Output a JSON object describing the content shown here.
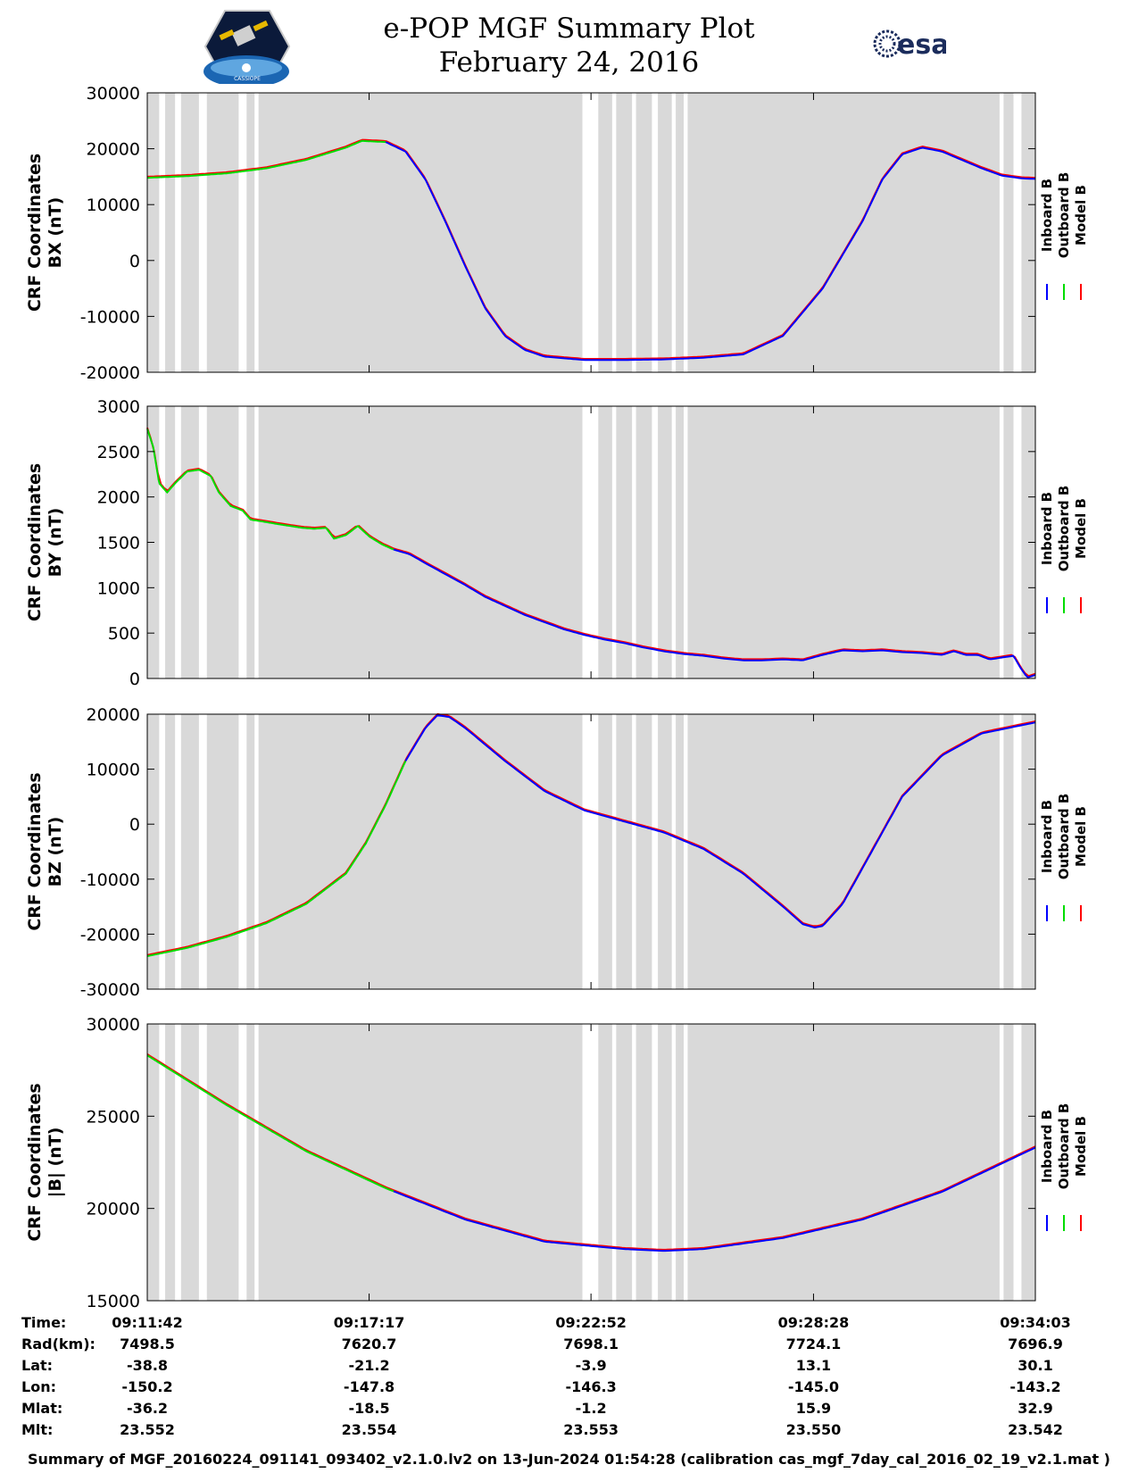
{
  "header": {
    "title": "e-POP MGF Summary Plot",
    "date": "February 24, 2016",
    "logo_left_text": "CASSIOPE",
    "logo_right_text": "esa"
  },
  "colors": {
    "inboard": "#0000ff",
    "outboard": "#00dd00",
    "model": "#ff0000",
    "gap_fill": "#d9d9d9"
  },
  "chart_data": [
    {
      "type": "line",
      "id": "bx",
      "ylabel_line1": "CRF Coordinates",
      "ylabel_line2": "BX (nT)",
      "ylim": [
        -20000,
        30000
      ],
      "yticks": [
        30000,
        20000,
        10000,
        0,
        -10000,
        -20000
      ],
      "legend": [
        "Inboard B",
        "Outboard B",
        "Model B"
      ],
      "x_minutes": [
        0,
        1,
        2,
        3,
        4,
        5,
        5.4,
        6,
        6.5,
        7,
        7.5,
        8,
        8.5,
        9,
        9.5,
        10,
        11,
        12,
        13,
        14,
        15,
        16,
        17,
        18,
        18.5,
        19,
        19.5,
        20,
        20.5,
        21,
        21.5,
        22,
        22.35
      ],
      "series": [
        {
          "name": "Outboard B",
          "start_min": 0,
          "end_min": 6.0
        },
        {
          "name": "Model B",
          "start_min": 0,
          "end_min": 22.35
        },
        {
          "name": "Inboard B",
          "start_min": 6.0,
          "end_min": 22.35
        }
      ],
      "values": [
        14800,
        15100,
        15600,
        16500,
        18000,
        20200,
        21400,
        21200,
        19500,
        14500,
        7000,
        -1000,
        -8500,
        -13500,
        -16000,
        -17200,
        -17800,
        -17800,
        -17700,
        -17400,
        -16800,
        -13500,
        -5000,
        7000,
        14500,
        19000,
        20200,
        19500,
        18000,
        16500,
        15200,
        14700,
        14600
      ]
    },
    {
      "type": "line",
      "id": "by",
      "ylabel_line1": "CRF Coordinates",
      "ylabel_line2": "BY (nT)",
      "ylim": [
        0,
        3000
      ],
      "yticks": [
        3000,
        2500,
        2000,
        1500,
        1000,
        500,
        0
      ],
      "legend": [
        "Inboard B",
        "Outboard B",
        "Model B"
      ],
      "x_minutes": [
        0,
        0.15,
        0.3,
        0.5,
        0.7,
        1,
        1.3,
        1.6,
        1.8,
        2.1,
        2.4,
        2.6,
        2.9,
        3.3,
        3.6,
        3.9,
        4.2,
        4.5,
        4.7,
        5.0,
        5.3,
        5.6,
        5.9,
        6.2,
        6.6,
        7,
        7.5,
        8,
        8.5,
        9,
        9.5,
        10,
        10.5,
        11,
        11.5,
        12,
        12.5,
        13,
        13.5,
        14,
        14.5,
        15,
        15.5,
        16,
        16.5,
        17,
        17.5,
        18,
        18.5,
        19,
        19.5,
        20,
        20.3,
        20.6,
        20.9,
        21.2,
        21.5,
        21.8,
        22.0,
        22.15,
        22.35
      ],
      "series": [
        {
          "name": "Outboard B",
          "start_min": 0,
          "end_min": 6.2
        },
        {
          "name": "Model B",
          "start_min": 0,
          "end_min": 22.35
        },
        {
          "name": "Inboard B",
          "start_min": 6.2,
          "end_min": 22.35
        }
      ],
      "values": [
        2750,
        2550,
        2150,
        2050,
        2150,
        2280,
        2300,
        2230,
        2050,
        1900,
        1850,
        1750,
        1730,
        1700,
        1680,
        1660,
        1650,
        1660,
        1540,
        1580,
        1680,
        1560,
        1480,
        1420,
        1370,
        1270,
        1150,
        1030,
        900,
        800,
        700,
        620,
        540,
        480,
        430,
        390,
        340,
        300,
        270,
        250,
        220,
        200,
        200,
        210,
        200,
        260,
        310,
        300,
        310,
        290,
        280,
        260,
        300,
        260,
        260,
        210,
        230,
        250,
        100,
        10,
        40
      ]
    },
    {
      "type": "line",
      "id": "bz",
      "ylabel_line1": "CRF Coordinates",
      "ylabel_line2": "BZ (nT)",
      "ylim": [
        -30000,
        20000
      ],
      "yticks": [
        20000,
        10000,
        0,
        -10000,
        -20000,
        -30000
      ],
      "legend": [
        "Inboard B",
        "Outboard B",
        "Model B"
      ],
      "x_minutes": [
        0,
        1,
        2,
        3,
        4,
        5,
        5.5,
        6,
        6.5,
        7,
        7.3,
        7.6,
        8,
        9,
        10,
        11,
        12,
        13,
        14,
        15,
        16,
        16.5,
        16.8,
        17,
        17.5,
        18,
        18.5,
        19,
        20,
        21,
        22.35
      ],
      "series": [
        {
          "name": "Outboard B",
          "start_min": 0,
          "end_min": 6.5
        },
        {
          "name": "Model B",
          "start_min": 0,
          "end_min": 22.35
        },
        {
          "name": "Inboard B",
          "start_min": 6.5,
          "end_min": 22.35
        }
      ],
      "values": [
        -24000,
        -22500,
        -20500,
        -18000,
        -14500,
        -9000,
        -3500,
        3500,
        11500,
        17500,
        19800,
        19500,
        17500,
        11500,
        6000,
        2500,
        500,
        -1500,
        -4500,
        -9000,
        -15000,
        -18200,
        -18800,
        -18500,
        -14500,
        -8000,
        -1500,
        5000,
        12500,
        16500,
        18500
      ]
    },
    {
      "type": "line",
      "id": "b_total",
      "ylabel_line1": "CRF Coordinates",
      "ylabel_line2": "|B| (nT)",
      "ylim": [
        15000,
        30000
      ],
      "yticks": [
        30000,
        25000,
        20000,
        15000
      ],
      "legend": [
        "Inboard B",
        "Outboard B",
        "Model B"
      ],
      "x_minutes": [
        0,
        2,
        4,
        6,
        8,
        10,
        12,
        13,
        14,
        16,
        18,
        20,
        22.35
      ],
      "series": [
        {
          "name": "Outboard B",
          "start_min": 0,
          "end_min": 6.2
        },
        {
          "name": "Model B",
          "start_min": 0,
          "end_min": 22.35
        },
        {
          "name": "Inboard B",
          "start_min": 6.2,
          "end_min": 22.35
        }
      ],
      "values": [
        28300,
        25600,
        23100,
        21100,
        19400,
        18200,
        17800,
        17700,
        17800,
        18400,
        19400,
        20900,
        23300
      ]
    }
  ],
  "data_gaps_minutes": [
    [
      0.3,
      0.45
    ],
    [
      0.7,
      0.85
    ],
    [
      1.3,
      1.5
    ],
    [
      2.3,
      2.5
    ],
    [
      2.7,
      2.8
    ],
    [
      10.95,
      11.35
    ],
    [
      11.7,
      11.8
    ],
    [
      12.2,
      12.3
    ],
    [
      12.7,
      12.85
    ],
    [
      13.2,
      13.3
    ],
    [
      13.5,
      13.6
    ],
    [
      21.45,
      21.55
    ],
    [
      21.8,
      22.0
    ]
  ],
  "x_axis": {
    "xlim_minutes": [
      0,
      22.35
    ],
    "tick_minutes": [
      0,
      5.583,
      11.167,
      16.767,
      22.35
    ]
  },
  "orbit_table": {
    "row_labels": [
      "Time:",
      "Rad(km):",
      "Lat:",
      "Lon:",
      "Mlat:",
      "Mlt:"
    ],
    "columns": [
      [
        "09:11:42",
        "7498.5",
        "-38.8",
        "-150.2",
        "-36.2",
        "23.552"
      ],
      [
        "09:17:17",
        "7620.7",
        "-21.2",
        "-147.8",
        "-18.5",
        "23.554"
      ],
      [
        "09:22:52",
        "7698.1",
        "-3.9",
        "-146.3",
        "-1.2",
        "23.553"
      ],
      [
        "09:28:28",
        "7724.1",
        "13.1",
        "-145.0",
        "15.9",
        "23.550"
      ],
      [
        "09:34:03",
        "7696.9",
        "30.1",
        "-143.2",
        "32.9",
        "23.542"
      ]
    ]
  },
  "footer": {
    "text": "Summary of MGF_20160224_091141_093402_v2.1.0.lv2 on 13-Jun-2024 01:54:28 (calibration cas_mgf_7day_cal_2016_02_19_v2.1.mat )"
  }
}
